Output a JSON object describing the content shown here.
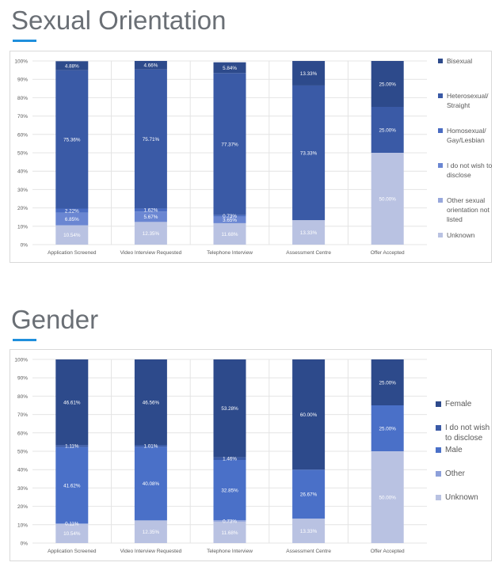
{
  "sections": [
    {
      "title": "Sexual Orientation"
    },
    {
      "title": "Gender"
    }
  ],
  "chart_data": [
    {
      "type": "bar",
      "stacked": true,
      "percent": true,
      "title": "Sexual Orientation",
      "categories": [
        "Application Screened",
        "Video Interview Requested",
        "Telephone Interview",
        "Assessment Centre",
        "Offer Accepted"
      ],
      "y_ticks": [
        "0%",
        "10%",
        "20%",
        "30%",
        "40%",
        "50%",
        "60%",
        "70%",
        "80%",
        "90%",
        "100%"
      ],
      "ylim": [
        0,
        100
      ],
      "grid": true,
      "legend_position": "right",
      "series": [
        {
          "name": "Unknown",
          "color": "#b9c2e2",
          "values": [
            10.54,
            12.35,
            11.68,
            13.33,
            50.0
          ],
          "labels": [
            "10.54%",
            "12.35%",
            "11.68%",
            "13.33%",
            "50.00%"
          ]
        },
        {
          "name": "Other sexual orientation not listed",
          "color": "#98a8dc",
          "values": [
            0.0,
            0.0,
            0.0,
            0.0,
            0.0
          ],
          "labels": [
            "",
            "",
            "",
            "",
            ""
          ]
        },
        {
          "name": "I do not wish to disclose",
          "color": "#6a86d2",
          "values": [
            6.85,
            5.67,
            3.65,
            0.0,
            0.0
          ],
          "labels": [
            "6.85%",
            "5.67%",
            "3.65%",
            "",
            ""
          ]
        },
        {
          "name": "Homosexual/ Gay/Lesbian",
          "color": "#4a6cc2",
          "values": [
            2.22,
            1.62,
            0.73,
            0.0,
            0.0
          ],
          "labels": [
            "2.22%",
            "1.62%",
            "0.73%",
            "",
            ""
          ]
        },
        {
          "name": "Heterosexual/ Straight",
          "color": "#3a5aa6",
          "values": [
            75.36,
            75.71,
            77.37,
            73.33,
            25.0
          ],
          "labels": [
            "75.36%",
            "75.71%",
            "77.37%",
            "73.33%",
            "25.00%"
          ]
        },
        {
          "name": "Bisexual",
          "color": "#2d4a8b",
          "values": [
            4.88,
            4.66,
            5.84,
            13.33,
            25.0
          ],
          "labels": [
            "4.88%",
            "4.66%",
            "5.84%",
            "13.33%",
            "25.00%"
          ]
        }
      ],
      "legend": [
        {
          "name": "Bisexual",
          "color": "#2d4a8b"
        },
        {
          "name": "Heterosexual/ Straight",
          "color": "#3a5aa6"
        },
        {
          "name": "Homosexual/ Gay/Lesbian",
          "color": "#4a6cc2"
        },
        {
          "name": "I do not wish to disclose",
          "color": "#6a86d2"
        },
        {
          "name": "Other sexual orientation not listed",
          "color": "#98a8dc"
        },
        {
          "name": "Unknown",
          "color": "#b9c2e2"
        }
      ]
    },
    {
      "type": "bar",
      "stacked": true,
      "percent": true,
      "title": "Gender",
      "categories": [
        "Application Screened",
        "Video Interview Requested",
        "Telephone Interview",
        "Assessment Centre",
        "Offer Accepted"
      ],
      "y_ticks": [
        "0%",
        "10%",
        "20%",
        "30%",
        "40%",
        "50%",
        "60%",
        "70%",
        "80%",
        "90%",
        "100%"
      ],
      "ylim": [
        0,
        100
      ],
      "grid": true,
      "legend_position": "right",
      "series": [
        {
          "name": "Unknown",
          "color": "#b9c2e2",
          "values": [
            10.54,
            12.35,
            11.68,
            13.33,
            50.0
          ],
          "labels": [
            "10.54%",
            "12.35%",
            "11.68%",
            "13.33%",
            "50.00%"
          ]
        },
        {
          "name": "Other",
          "color": "#8da0da",
          "values": [
            0.11,
            0.0,
            0.73,
            0.0,
            0.0
          ],
          "labels": [
            "0.11%",
            "",
            "0.73%",
            "",
            ""
          ]
        },
        {
          "name": "Male",
          "color": "#4a70c8",
          "values": [
            41.62,
            40.08,
            32.85,
            26.67,
            25.0
          ],
          "labels": [
            "41.62%",
            "40.08%",
            "32.85%",
            "26.67%",
            "25.00%"
          ]
        },
        {
          "name": "I do not wish to disclose",
          "color": "#3a5aa6",
          "values": [
            1.11,
            1.01,
            1.46,
            0.0,
            0.0
          ],
          "labels": [
            "1.11%",
            "1.01%",
            "1.46%",
            "",
            ""
          ]
        },
        {
          "name": "Female",
          "color": "#2d4a8b",
          "values": [
            46.61,
            46.56,
            53.28,
            60.0,
            25.0
          ],
          "labels": [
            "46.61%",
            "46.56%",
            "53.28%",
            "60.00%",
            "25.00%"
          ]
        }
      ],
      "legend": [
        {
          "name": "Female",
          "color": "#2d4a8b"
        },
        {
          "name": "I do not wish to disclose",
          "color": "#3a5aa6"
        },
        {
          "name": "Male",
          "color": "#4a70c8"
        },
        {
          "name": "Other",
          "color": "#8da0da"
        },
        {
          "name": "Unknown",
          "color": "#b9c2e2"
        }
      ]
    }
  ]
}
